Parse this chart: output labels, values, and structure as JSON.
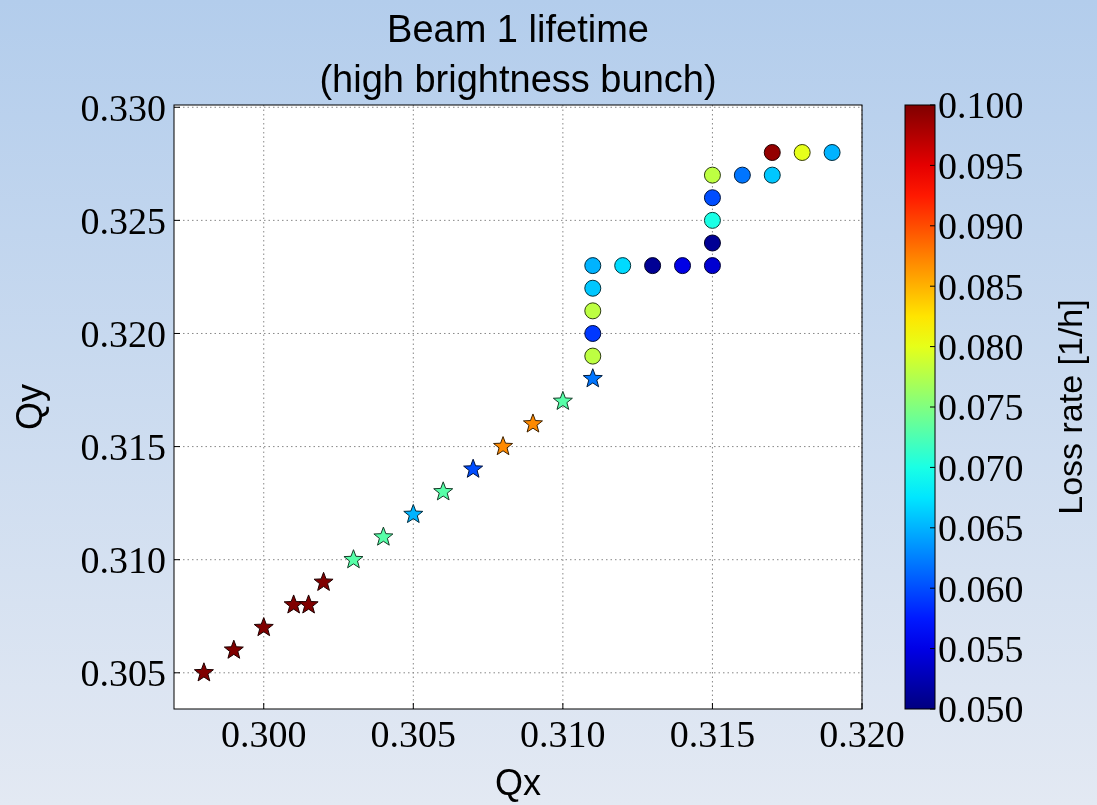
{
  "chart_data": {
    "type": "scatter",
    "title": "Beam 1 lifetime\n(high brightness bunch)",
    "xlabel": "Qx",
    "ylabel": "Qy",
    "clabel": "Loss rate [1/h]",
    "xlim": [
      0.297,
      0.32
    ],
    "ylim": [
      0.3034,
      0.3301
    ],
    "xticks": [
      {
        "value": 0.3,
        "label": "0.300"
      },
      {
        "value": 0.305,
        "label": "0.305"
      },
      {
        "value": 0.31,
        "label": "0.310"
      },
      {
        "value": 0.315,
        "label": "0.315"
      },
      {
        "value": 0.32,
        "label": "0.320"
      }
    ],
    "yticks": [
      {
        "value": 0.305,
        "label": "0.305"
      },
      {
        "value": 0.31,
        "label": "0.310"
      },
      {
        "value": 0.315,
        "label": "0.315"
      },
      {
        "value": 0.32,
        "label": "0.320"
      },
      {
        "value": 0.325,
        "label": "0.325"
      },
      {
        "value": 0.33,
        "label": "0.330"
      }
    ],
    "clim": [
      0.05,
      0.1
    ],
    "cticks": [
      {
        "value": 0.05,
        "label": "0.050"
      },
      0.055,
      {
        "value": 0.06,
        "label": "0.060"
      },
      0.065,
      {
        "value": 0.07,
        "label": "0.070"
      },
      0.075,
      {
        "value": 0.08,
        "label": "0.080"
      },
      0.085,
      {
        "value": 0.09,
        "label": "0.090"
      },
      0.095,
      {
        "value": 0.1,
        "label": "0.100"
      }
    ],
    "grid": true,
    "series": [
      {
        "marker": "star",
        "x": [
          0.298,
          0.299,
          0.3,
          0.301,
          0.3015,
          0.302,
          0.303,
          0.304,
          0.305,
          0.306,
          0.307,
          0.308,
          0.309,
          0.31,
          0.311
        ],
        "values": [
          0.305,
          0.306,
          0.307,
          0.308,
          0.308,
          0.309,
          0.31,
          0.311,
          0.312,
          0.313,
          0.314,
          0.315,
          0.316,
          0.317,
          0.318
        ],
        "cvalues": [
          0.1,
          0.1,
          0.1,
          0.1,
          0.1,
          0.1,
          0.073,
          0.073,
          0.065,
          0.073,
          0.06,
          0.087,
          0.087,
          0.073,
          0.062
        ],
        "colors": [
          "#800000",
          "#800000",
          "#800000",
          "#800000",
          "#800000",
          "#800000",
          "#57ffa8",
          "#57ffa8",
          "#00b3ff",
          "#57ffa8",
          "#004dff",
          "#ff8a00",
          "#ff8a00",
          "#57ffa8",
          "#0075ff"
        ]
      },
      {
        "marker": "circle",
        "x": [
          0.311,
          0.311,
          0.311,
          0.311,
          0.311,
          0.312,
          0.313,
          0.314,
          0.315,
          0.315,
          0.315,
          0.315,
          0.315,
          0.316,
          0.317,
          0.317,
          0.318,
          0.319
        ],
        "values": [
          0.319,
          0.32,
          0.321,
          0.322,
          0.323,
          0.323,
          0.323,
          0.323,
          0.323,
          0.324,
          0.325,
          0.326,
          0.327,
          0.327,
          0.327,
          0.328,
          0.328,
          0.328
        ],
        "cvalues": [
          0.078,
          0.059,
          0.078,
          0.066,
          0.065,
          0.067,
          0.051,
          0.055,
          0.054,
          0.051,
          0.07,
          0.06,
          0.078,
          0.062,
          0.066,
          0.099,
          0.08,
          0.065
        ],
        "colors": [
          "#bdff42",
          "#0038ff",
          "#bdff42",
          "#00c7ff",
          "#00b3ff",
          "#00dbff",
          "#000094",
          "#0000e6",
          "#0000d1",
          "#000094",
          "#1affe6",
          "#004dff",
          "#bdff42",
          "#0075ff",
          "#00c7ff",
          "#940000",
          "#e6ff1a",
          "#00b3ff"
        ]
      }
    ]
  }
}
